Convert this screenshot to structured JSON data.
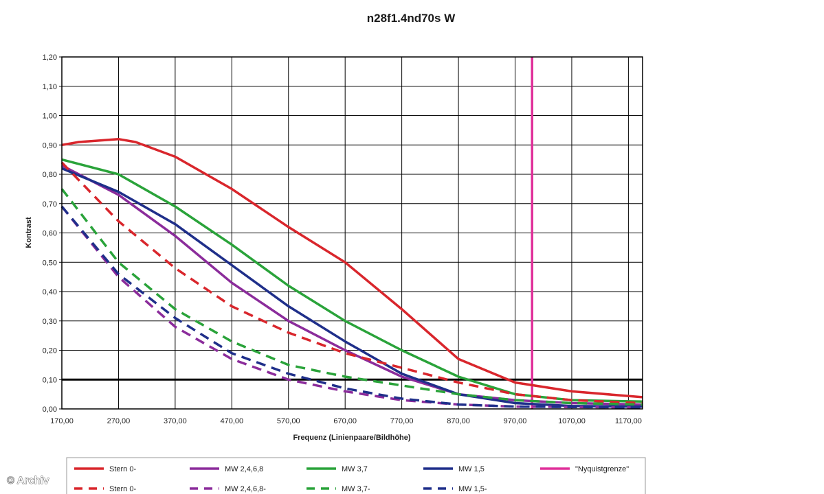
{
  "watermark": "© Archiv",
  "chart_data": {
    "type": "line",
    "title": "n28f1.4nd70s W",
    "xlabel": "Frequenz (Linienpaare/Bildhöhe)",
    "ylabel": "Kontrast",
    "xlim": [
      170,
      1195
    ],
    "ylim": [
      0,
      1.2
    ],
    "x_ticks": [
      "170,00",
      "270,00",
      "370,00",
      "470,00",
      "570,00",
      "670,00",
      "770,00",
      "870,00",
      "970,00",
      "1070,00",
      "1170,00"
    ],
    "y_ticks": [
      "0,00",
      "0,10",
      "0,20",
      "0,30",
      "0,40",
      "0,50",
      "0,60",
      "0,70",
      "0,80",
      "0,90",
      "1,00",
      "1,10",
      "1,20"
    ],
    "grid": true,
    "reference_line": {
      "y": 0.1,
      "color": "#000000"
    },
    "nyquist_line": {
      "x": 1000,
      "color": "#e0309a"
    },
    "legend_position": "bottom",
    "series": [
      {
        "name": "Stern 0-",
        "color": "#d9262c",
        "style": "solid",
        "points": [
          [
            170,
            0.9
          ],
          [
            200,
            0.91
          ],
          [
            270,
            0.92
          ],
          [
            300,
            0.91
          ],
          [
            370,
            0.86
          ],
          [
            470,
            0.75
          ],
          [
            570,
            0.62
          ],
          [
            670,
            0.5
          ],
          [
            770,
            0.34
          ],
          [
            870,
            0.17
          ],
          [
            970,
            0.09
          ],
          [
            1070,
            0.06
          ],
          [
            1195,
            0.04
          ]
        ]
      },
      {
        "name": "MW 2,4,6,8",
        "color": "#8b2c9b",
        "style": "solid",
        "points": [
          [
            170,
            0.83
          ],
          [
            270,
            0.73
          ],
          [
            370,
            0.59
          ],
          [
            470,
            0.43
          ],
          [
            570,
            0.3
          ],
          [
            670,
            0.2
          ],
          [
            770,
            0.11
          ],
          [
            870,
            0.05
          ],
          [
            970,
            0.03
          ],
          [
            1070,
            0.02
          ],
          [
            1195,
            0.015
          ]
        ]
      },
      {
        "name": "MW 3,7",
        "color": "#2aa33a",
        "style": "solid",
        "points": [
          [
            170,
            0.85
          ],
          [
            270,
            0.8
          ],
          [
            370,
            0.69
          ],
          [
            470,
            0.56
          ],
          [
            570,
            0.42
          ],
          [
            670,
            0.3
          ],
          [
            770,
            0.2
          ],
          [
            870,
            0.11
          ],
          [
            970,
            0.05
          ],
          [
            1070,
            0.03
          ],
          [
            1195,
            0.025
          ]
        ]
      },
      {
        "name": "MW 1,5",
        "color": "#1f2f8a",
        "style": "solid",
        "points": [
          [
            170,
            0.82
          ],
          [
            270,
            0.74
          ],
          [
            370,
            0.63
          ],
          [
            470,
            0.49
          ],
          [
            570,
            0.35
          ],
          [
            670,
            0.23
          ],
          [
            770,
            0.12
          ],
          [
            870,
            0.05
          ],
          [
            970,
            0.02
          ],
          [
            1070,
            0.01
          ],
          [
            1195,
            0.008
          ]
        ]
      },
      {
        "name": "\"Nyquistgrenze\"",
        "color": "#e0309a",
        "style": "solid",
        "points": []
      },
      {
        "name": "Stern 0-",
        "color": "#d9262c",
        "style": "dashed",
        "points": [
          [
            170,
            0.84
          ],
          [
            270,
            0.64
          ],
          [
            370,
            0.48
          ],
          [
            470,
            0.35
          ],
          [
            570,
            0.26
          ],
          [
            670,
            0.19
          ],
          [
            770,
            0.14
          ],
          [
            870,
            0.09
          ],
          [
            970,
            0.05
          ],
          [
            1070,
            0.03
          ],
          [
            1195,
            0.02
          ]
        ]
      },
      {
        "name": "MW 2,4,6,8-",
        "color": "#8b2c9b",
        "style": "dashed",
        "points": [
          [
            170,
            0.69
          ],
          [
            270,
            0.45
          ],
          [
            370,
            0.28
          ],
          [
            470,
            0.17
          ],
          [
            570,
            0.1
          ],
          [
            670,
            0.06
          ],
          [
            770,
            0.03
          ],
          [
            870,
            0.015
          ],
          [
            970,
            0.008
          ],
          [
            1195,
            0.005
          ]
        ]
      },
      {
        "name": "MW 3,7-",
        "color": "#2aa33a",
        "style": "dashed",
        "points": [
          [
            170,
            0.75
          ],
          [
            270,
            0.5
          ],
          [
            370,
            0.34
          ],
          [
            470,
            0.23
          ],
          [
            570,
            0.15
          ],
          [
            670,
            0.11
          ],
          [
            770,
            0.08
          ],
          [
            870,
            0.05
          ],
          [
            970,
            0.03
          ],
          [
            1070,
            0.02
          ],
          [
            1195,
            0.015
          ]
        ]
      },
      {
        "name": "MW 1,5-",
        "color": "#1f2f8a",
        "style": "dashed",
        "points": [
          [
            170,
            0.69
          ],
          [
            270,
            0.46
          ],
          [
            370,
            0.31
          ],
          [
            470,
            0.19
          ],
          [
            570,
            0.12
          ],
          [
            670,
            0.07
          ],
          [
            770,
            0.035
          ],
          [
            870,
            0.015
          ],
          [
            970,
            0.008
          ],
          [
            1195,
            0.005
          ]
        ]
      }
    ]
  }
}
